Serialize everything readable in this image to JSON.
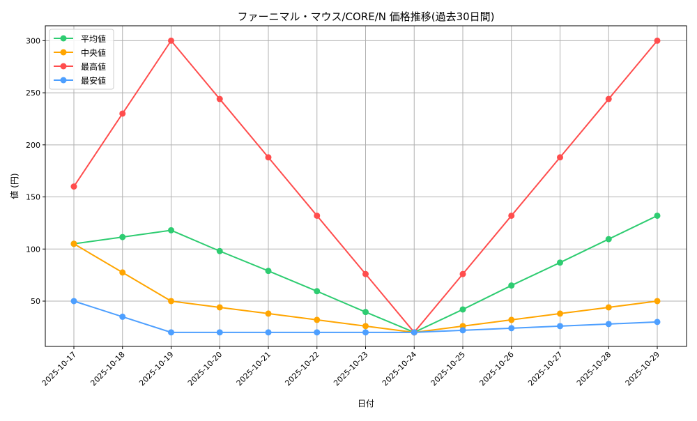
{
  "chart_data": {
    "type": "line",
    "title": "ファーニマル・マウス/CORE/N 価格推移(過去30日間)",
    "xlabel": "日付",
    "ylabel": "値 (円)",
    "categories": [
      "2025-10-17",
      "2025-10-18",
      "2025-10-19",
      "2025-10-20",
      "2025-10-21",
      "2025-10-22",
      "2025-10-23",
      "2025-10-24",
      "2025-10-25",
      "2025-10-26",
      "2025-10-27",
      "2025-10-28",
      "2025-10-29"
    ],
    "ylim": [
      6.5,
      314.3
    ],
    "yticks": [
      50,
      100,
      150,
      200,
      250,
      300
    ],
    "grid": true,
    "legend": "top-left",
    "series": [
      {
        "name": "平均値",
        "color": "#2ecc71",
        "values": [
          105,
          111.5,
          118,
          98,
          79,
          59.5,
          39.5,
          20,
          42,
          65,
          87,
          109.5,
          132
        ]
      },
      {
        "name": "中央値",
        "color": "#ffa500",
        "values": [
          105,
          77.5,
          50,
          44,
          38,
          32,
          26,
          20,
          26,
          32,
          38,
          44,
          50
        ]
      },
      {
        "name": "最高値",
        "color": "#ff4d4d",
        "values": [
          160,
          230,
          300,
          244,
          188,
          132,
          76,
          20,
          76,
          132,
          188,
          244,
          300
        ]
      },
      {
        "name": "最安値",
        "color": "#4d9fff",
        "values": [
          50,
          35,
          20,
          20,
          20,
          20,
          20,
          20,
          22,
          24,
          26,
          28,
          30
        ]
      }
    ]
  }
}
